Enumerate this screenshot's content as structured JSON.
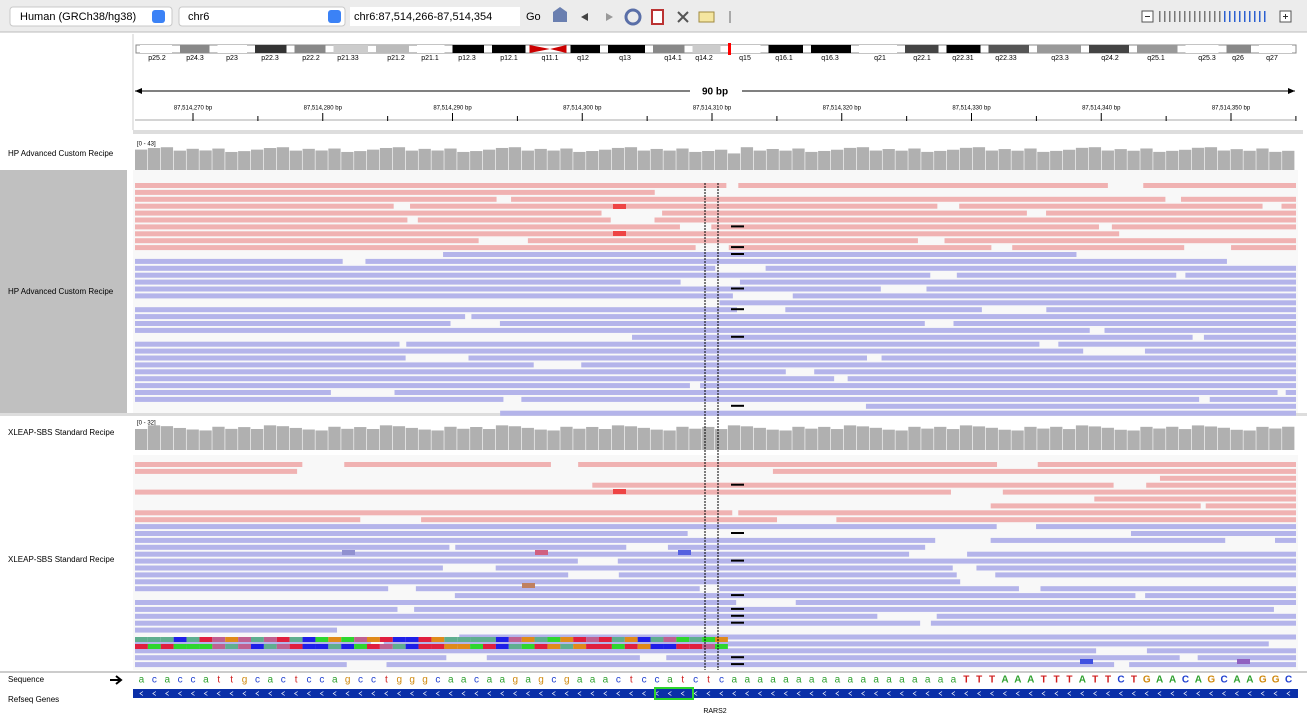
{
  "toolbar": {
    "genome": "Human (GRCh38/hg38)",
    "chromosome": "chr6",
    "locus": "chr6:87,514,266-87,514,354",
    "go": "Go"
  },
  "ideogram": {
    "bands": [
      "p25.2",
      "p24.3",
      "p23",
      "p22.3",
      "p22.2",
      "p21.33",
      "p21.2",
      "p21.1",
      "p12.3",
      "p12.1",
      "q11.1",
      "q12",
      "q13",
      "q14.1",
      "q14.2",
      "q15",
      "q16.1",
      "q16.3",
      "q21",
      "q22.1",
      "q22.31",
      "q22.33",
      "q23.3",
      "q24.2",
      "q25.1",
      "q25.3",
      "q26",
      "q27"
    ]
  },
  "ruler": {
    "span": "90 bp",
    "labels": [
      "87,514,270 bp",
      "87,514,280 bp",
      "87,514,290 bp",
      "87,514,300 bp",
      "87,514,310 bp",
      "87,514,320 bp",
      "87,514,330 bp",
      "87,514,340 bp",
      "87,514,350 bp"
    ]
  },
  "tracks": [
    {
      "coverage_name": "HP Advanced Custom Recipe",
      "range": "[0 - 43]",
      "reads_name": "HP Advanced Custom Recipe"
    },
    {
      "coverage_name": "XLEAP-SBS Standard Recipe",
      "range": "[0 - 32]",
      "reads_name": "XLEAP-SBS Standard Recipe"
    }
  ],
  "sequence": {
    "name": "Sequence",
    "bases": [
      "a",
      "c",
      "a",
      "c",
      "c",
      "a",
      "t",
      "t",
      "g",
      "c",
      "a",
      "c",
      "t",
      "c",
      "c",
      "a",
      "g",
      "c",
      "c",
      "t",
      "g",
      "g",
      "g",
      "c",
      "a",
      "a",
      "c",
      "a",
      "a",
      "g",
      "a",
      "g",
      "c",
      "g",
      "a",
      "a",
      "a",
      "c",
      "t",
      "c",
      "c",
      "a",
      "t",
      "c",
      "t",
      "c",
      "a",
      "a",
      "a",
      "a",
      "a",
      "a",
      "a",
      "a",
      "a",
      "a",
      "a",
      "a",
      "a",
      "a",
      "a",
      "a",
      "a",
      "a",
      "T",
      "T",
      "T",
      "A",
      "A",
      "A",
      "T",
      "T",
      "T",
      "A",
      "T",
      "T",
      "C",
      "T",
      "G",
      "A",
      "A",
      "C",
      "A",
      "G",
      "C",
      "A",
      "A",
      "G",
      "G",
      "C"
    ]
  },
  "genes": {
    "name": "Refseq Genes",
    "gene": "RARS2"
  }
}
